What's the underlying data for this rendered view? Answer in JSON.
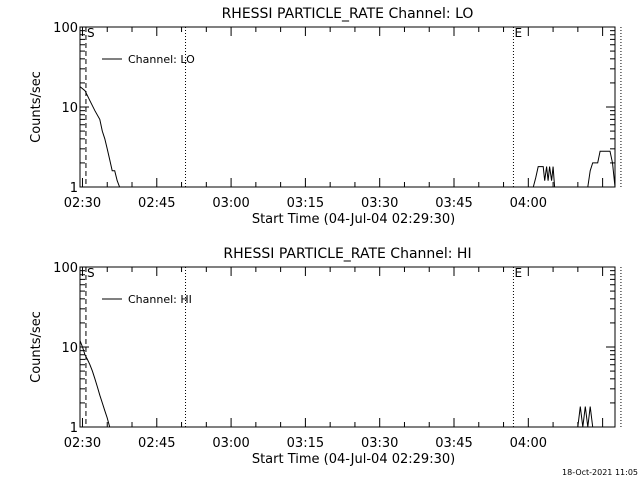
{
  "footer_timestamp": "18-Oct-2021 11:05",
  "chart_data": [
    {
      "type": "line",
      "title": "RHESSI PARTICLE_RATE Channel: LO",
      "xlabel": "Start Time (04-Jul-04 02:29:30)",
      "ylabel": "Counts/sec",
      "yscale": "log",
      "ylim": [
        1,
        100
      ],
      "y_ticks": [
        1,
        10,
        100
      ],
      "y_tick_labels": [
        "1",
        "10",
        "100"
      ],
      "x_unit": "minutes after 02:29:30",
      "xlim": [
        0,
        108
      ],
      "x_ticks": [
        0.5,
        15.5,
        30.5,
        45.5,
        60.5,
        75.5,
        90.5
      ],
      "x_tick_labels": [
        "02:30",
        "02:45",
        "03:00",
        "03:15",
        "03:30",
        "03:45",
        "04:00"
      ],
      "legend": "top-left",
      "series": [
        {
          "name": "Channel: LO",
          "x": [
            0,
            1,
            2,
            3,
            4,
            4.5,
            5,
            5.5,
            6,
            6.5,
            7,
            7.5,
            8,
            8.5,
            91.5,
            92,
            92.5,
            93,
            93.5,
            93.8,
            94.2,
            94.5,
            94.8,
            95.2,
            95.5,
            95.8,
            102.5,
            103,
            103.5,
            104,
            104.5,
            105,
            106,
            107,
            107.5,
            108
          ],
          "y": [
            18,
            16,
            12,
            9,
            7,
            5,
            4,
            3,
            2.2,
            1.6,
            1.6,
            1.2,
            1,
            1,
            1,
            1.3,
            1.8,
            1.8,
            1.8,
            1.2,
            1.8,
            1.2,
            1.8,
            1.2,
            1.8,
            1,
            1,
            1.6,
            2,
            2,
            2,
            2.8,
            2.8,
            2.8,
            2,
            1
          ]
        }
      ],
      "markers": [
        {
          "label": "S",
          "x": 1.2,
          "style": "dashed"
        },
        {
          "label": "",
          "x": 21.3,
          "style": "dotted"
        },
        {
          "label": "E",
          "x": 87.5,
          "style": "dotted"
        },
        {
          "label": "",
          "x": 109.2,
          "style": "dotted"
        }
      ]
    },
    {
      "type": "line",
      "title": "RHESSI PARTICLE_RATE Channel: HI",
      "xlabel": "Start Time (04-Jul-04 02:29:30)",
      "ylabel": "Counts/sec",
      "yscale": "log",
      "ylim": [
        1,
        100
      ],
      "y_ticks": [
        1,
        10,
        100
      ],
      "y_tick_labels": [
        "1",
        "10",
        "100"
      ],
      "x_unit": "minutes after 02:29:30",
      "xlim": [
        0,
        108
      ],
      "x_ticks": [
        0.5,
        15.5,
        30.5,
        45.5,
        60.5,
        75.5,
        90.5
      ],
      "x_tick_labels": [
        "02:30",
        "02:45",
        "03:00",
        "03:15",
        "03:30",
        "03:45",
        "04:00"
      ],
      "legend": "top-left",
      "series": [
        {
          "name": "Channel: HI",
          "x": [
            0,
            0.5,
            1,
            1.5,
            2,
            2.5,
            3,
            3.5,
            4,
            4.5,
            5,
            5.5,
            6,
            6.5,
            100.5,
            101,
            101.5,
            102,
            102.5,
            103,
            103.5
          ],
          "y": [
            12,
            10,
            8,
            7,
            6,
            5,
            4,
            3.2,
            2.5,
            2,
            1.6,
            1.3,
            1,
            1,
            1,
            1.8,
            1,
            1.8,
            1,
            1.8,
            1
          ]
        }
      ],
      "markers": [
        {
          "label": "S",
          "x": 1.2,
          "style": "dashed"
        },
        {
          "label": "",
          "x": 21.3,
          "style": "dotted"
        },
        {
          "label": "E",
          "x": 87.5,
          "style": "dotted"
        },
        {
          "label": "",
          "x": 109.2,
          "style": "dotted"
        }
      ]
    }
  ]
}
